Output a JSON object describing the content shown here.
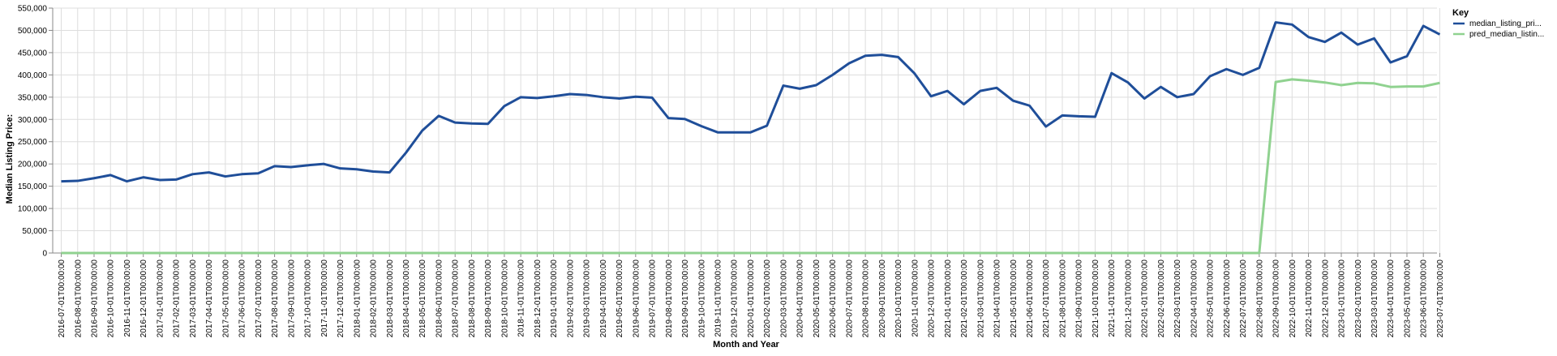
{
  "chart_data": {
    "type": "line",
    "xlabel": "Month and Year",
    "ylabel": "Median Listing Price:",
    "ylim": [
      0,
      550000
    ],
    "yticks": [
      "0",
      "50,000",
      "100,000",
      "150,000",
      "200,000",
      "250,000",
      "300,000",
      "350,000",
      "400,000",
      "450,000",
      "500,000",
      "550,000"
    ],
    "grid": true,
    "legend": {
      "title": "Key",
      "position": "right"
    },
    "x": [
      "2016-07-01T00:00:00",
      "2016-08-01T00:00:00",
      "2016-09-01T00:00:00",
      "2016-10-01T00:00:00",
      "2016-11-01T00:00:00",
      "2016-12-01T00:00:00",
      "2017-01-01T00:00:00",
      "2017-02-01T00:00:00",
      "2017-03-01T00:00:00",
      "2017-04-01T00:00:00",
      "2017-05-01T00:00:00",
      "2017-06-01T00:00:00",
      "2017-07-01T00:00:00",
      "2017-08-01T00:00:00",
      "2017-09-01T00:00:00",
      "2017-10-01T00:00:00",
      "2017-11-01T00:00:00",
      "2017-12-01T00:00:00",
      "2018-01-01T00:00:00",
      "2018-02-01T00:00:00",
      "2018-03-01T00:00:00",
      "2018-04-01T00:00:00",
      "2018-05-01T00:00:00",
      "2018-06-01T00:00:00",
      "2018-07-01T00:00:00",
      "2018-08-01T00:00:00",
      "2018-09-01T00:00:00",
      "2018-10-01T00:00:00",
      "2018-11-01T00:00:00",
      "2018-12-01T00:00:00",
      "2019-01-01T00:00:00",
      "2019-02-01T00:00:00",
      "2019-03-01T00:00:00",
      "2019-04-01T00:00:00",
      "2019-05-01T00:00:00",
      "2019-06-01T00:00:00",
      "2019-07-01T00:00:00",
      "2019-08-01T00:00:00",
      "2019-09-01T00:00:00",
      "2019-10-01T00:00:00",
      "2019-11-01T00:00:00",
      "2019-12-01T00:00:00",
      "2020-01-01T00:00:00",
      "2020-02-01T00:00:00",
      "2020-03-01T00:00:00",
      "2020-04-01T00:00:00",
      "2020-05-01T00:00:00",
      "2020-06-01T00:00:00",
      "2020-07-01T00:00:00",
      "2020-08-01T00:00:00",
      "2020-09-01T00:00:00",
      "2020-10-01T00:00:00",
      "2020-11-01T00:00:00",
      "2020-12-01T00:00:00",
      "2021-01-01T00:00:00",
      "2021-02-01T00:00:00",
      "2021-03-01T00:00:00",
      "2021-04-01T00:00:00",
      "2021-05-01T00:00:00",
      "2021-06-01T00:00:00",
      "2021-07-01T00:00:00",
      "2021-08-01T00:00:00",
      "2021-09-01T00:00:00",
      "2021-10-01T00:00:00",
      "2021-11-01T00:00:00",
      "2021-12-01T00:00:00",
      "2022-01-01T00:00:00",
      "2022-02-01T00:00:00",
      "2022-03-01T00:00:00",
      "2022-04-01T00:00:00",
      "2022-05-01T00:00:00",
      "2022-06-01T00:00:00",
      "2022-07-01T00:00:00",
      "2022-08-01T00:00:00",
      "2022-09-01T00:00:00",
      "2022-10-01T00:00:00",
      "2022-11-01T00:00:00",
      "2022-12-01T00:00:00",
      "2023-01-01T00:00:00",
      "2023-02-01T00:00:00",
      "2023-03-01T00:00:00",
      "2023-04-01T00:00:00",
      "2023-05-01T00:00:00",
      "2023-06-01T00:00:00",
      "2023-07-01T00:00:00"
    ],
    "series": [
      {
        "name": "median_listing_pri...",
        "color": "#1f4e99",
        "values": [
          161000,
          162000,
          168000,
          175000,
          161000,
          170000,
          164000,
          165000,
          177000,
          181000,
          172000,
          177000,
          179000,
          195000,
          193000,
          197000,
          200000,
          190000,
          188000,
          183000,
          181000,
          225000,
          275000,
          308000,
          293000,
          291000,
          290000,
          330000,
          350000,
          348000,
          352000,
          357000,
          355000,
          350000,
          347000,
          351000,
          349000,
          303000,
          301000,
          285000,
          271000,
          271000,
          271000,
          286000,
          376000,
          369000,
          377000,
          400000,
          426000,
          443000,
          445000,
          440000,
          403000,
          352000,
          364000,
          334000,
          364000,
          371000,
          342000,
          331000,
          284000,
          309000,
          307000,
          306000,
          404000,
          383000,
          347000,
          373000,
          350000,
          357000,
          397000,
          413000,
          400000,
          416000,
          518000,
          513000,
          485000,
          474000,
          495000,
          468000,
          482000,
          428000,
          442000,
          510000,
          491000
        ]
      },
      {
        "name": "pred_median_listin...",
        "color": "#90d290",
        "values": [
          0,
          0,
          0,
          0,
          0,
          0,
          0,
          0,
          0,
          0,
          0,
          0,
          0,
          0,
          0,
          0,
          0,
          0,
          0,
          0,
          0,
          0,
          0,
          0,
          0,
          0,
          0,
          0,
          0,
          0,
          0,
          0,
          0,
          0,
          0,
          0,
          0,
          0,
          0,
          0,
          0,
          0,
          0,
          0,
          0,
          0,
          0,
          0,
          0,
          0,
          0,
          0,
          0,
          0,
          0,
          0,
          0,
          0,
          0,
          0,
          0,
          0,
          0,
          0,
          0,
          0,
          0,
          0,
          0,
          0,
          0,
          0,
          0,
          0,
          384000,
          390000,
          387000,
          383000,
          377000,
          382000,
          381000,
          373000,
          374000,
          374000,
          382000
        ]
      }
    ]
  }
}
